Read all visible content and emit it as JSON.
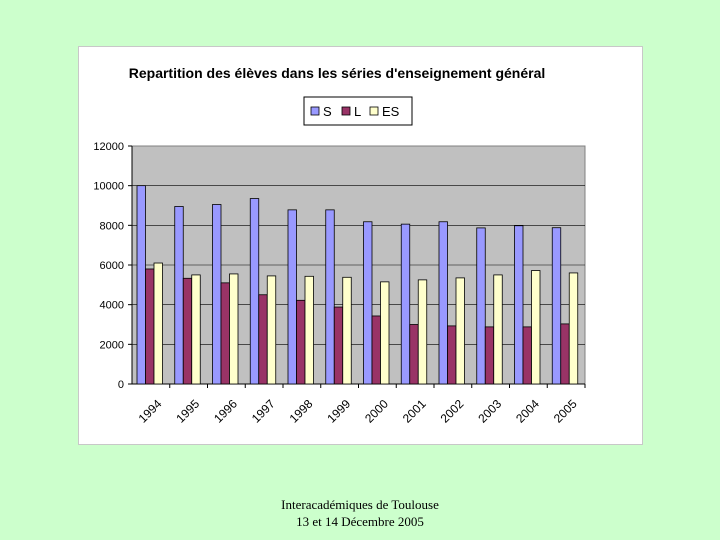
{
  "colors": {
    "page_background": "#ccffcc",
    "plot_background": "#c0c0c0",
    "S": "#9999ff",
    "L": "#993366",
    "ES": "#ffffcc"
  },
  "footer": {
    "line1": "Interacadémiques de Toulouse",
    "line2": "13 et 14 Décembre 2005"
  },
  "chart_data": {
    "type": "bar",
    "title": "Repartition des élèves dans les séries d'enseignement général",
    "xlabel": "",
    "ylabel": "",
    "ylim": [
      0,
      12000
    ],
    "yticks": [
      0,
      2000,
      4000,
      6000,
      8000,
      10000,
      12000
    ],
    "grid": true,
    "legend_position": "top-center",
    "categories": [
      "1994",
      "1995",
      "1996",
      "1997",
      "1998",
      "1999",
      "2000",
      "2001",
      "2002",
      "2003",
      "2004",
      "2005"
    ],
    "series": [
      {
        "name": "S",
        "values": [
          10000,
          8950,
          9050,
          9350,
          8780,
          8780,
          8180,
          8060,
          8180,
          7870,
          7980,
          7880
        ]
      },
      {
        "name": "L",
        "values": [
          5800,
          5330,
          5100,
          4500,
          4220,
          3880,
          3430,
          3000,
          2930,
          2880,
          2880,
          3030
        ]
      },
      {
        "name": "ES",
        "values": [
          6100,
          5500,
          5550,
          5450,
          5430,
          5380,
          5150,
          5250,
          5350,
          5500,
          5720,
          5600
        ]
      }
    ]
  }
}
